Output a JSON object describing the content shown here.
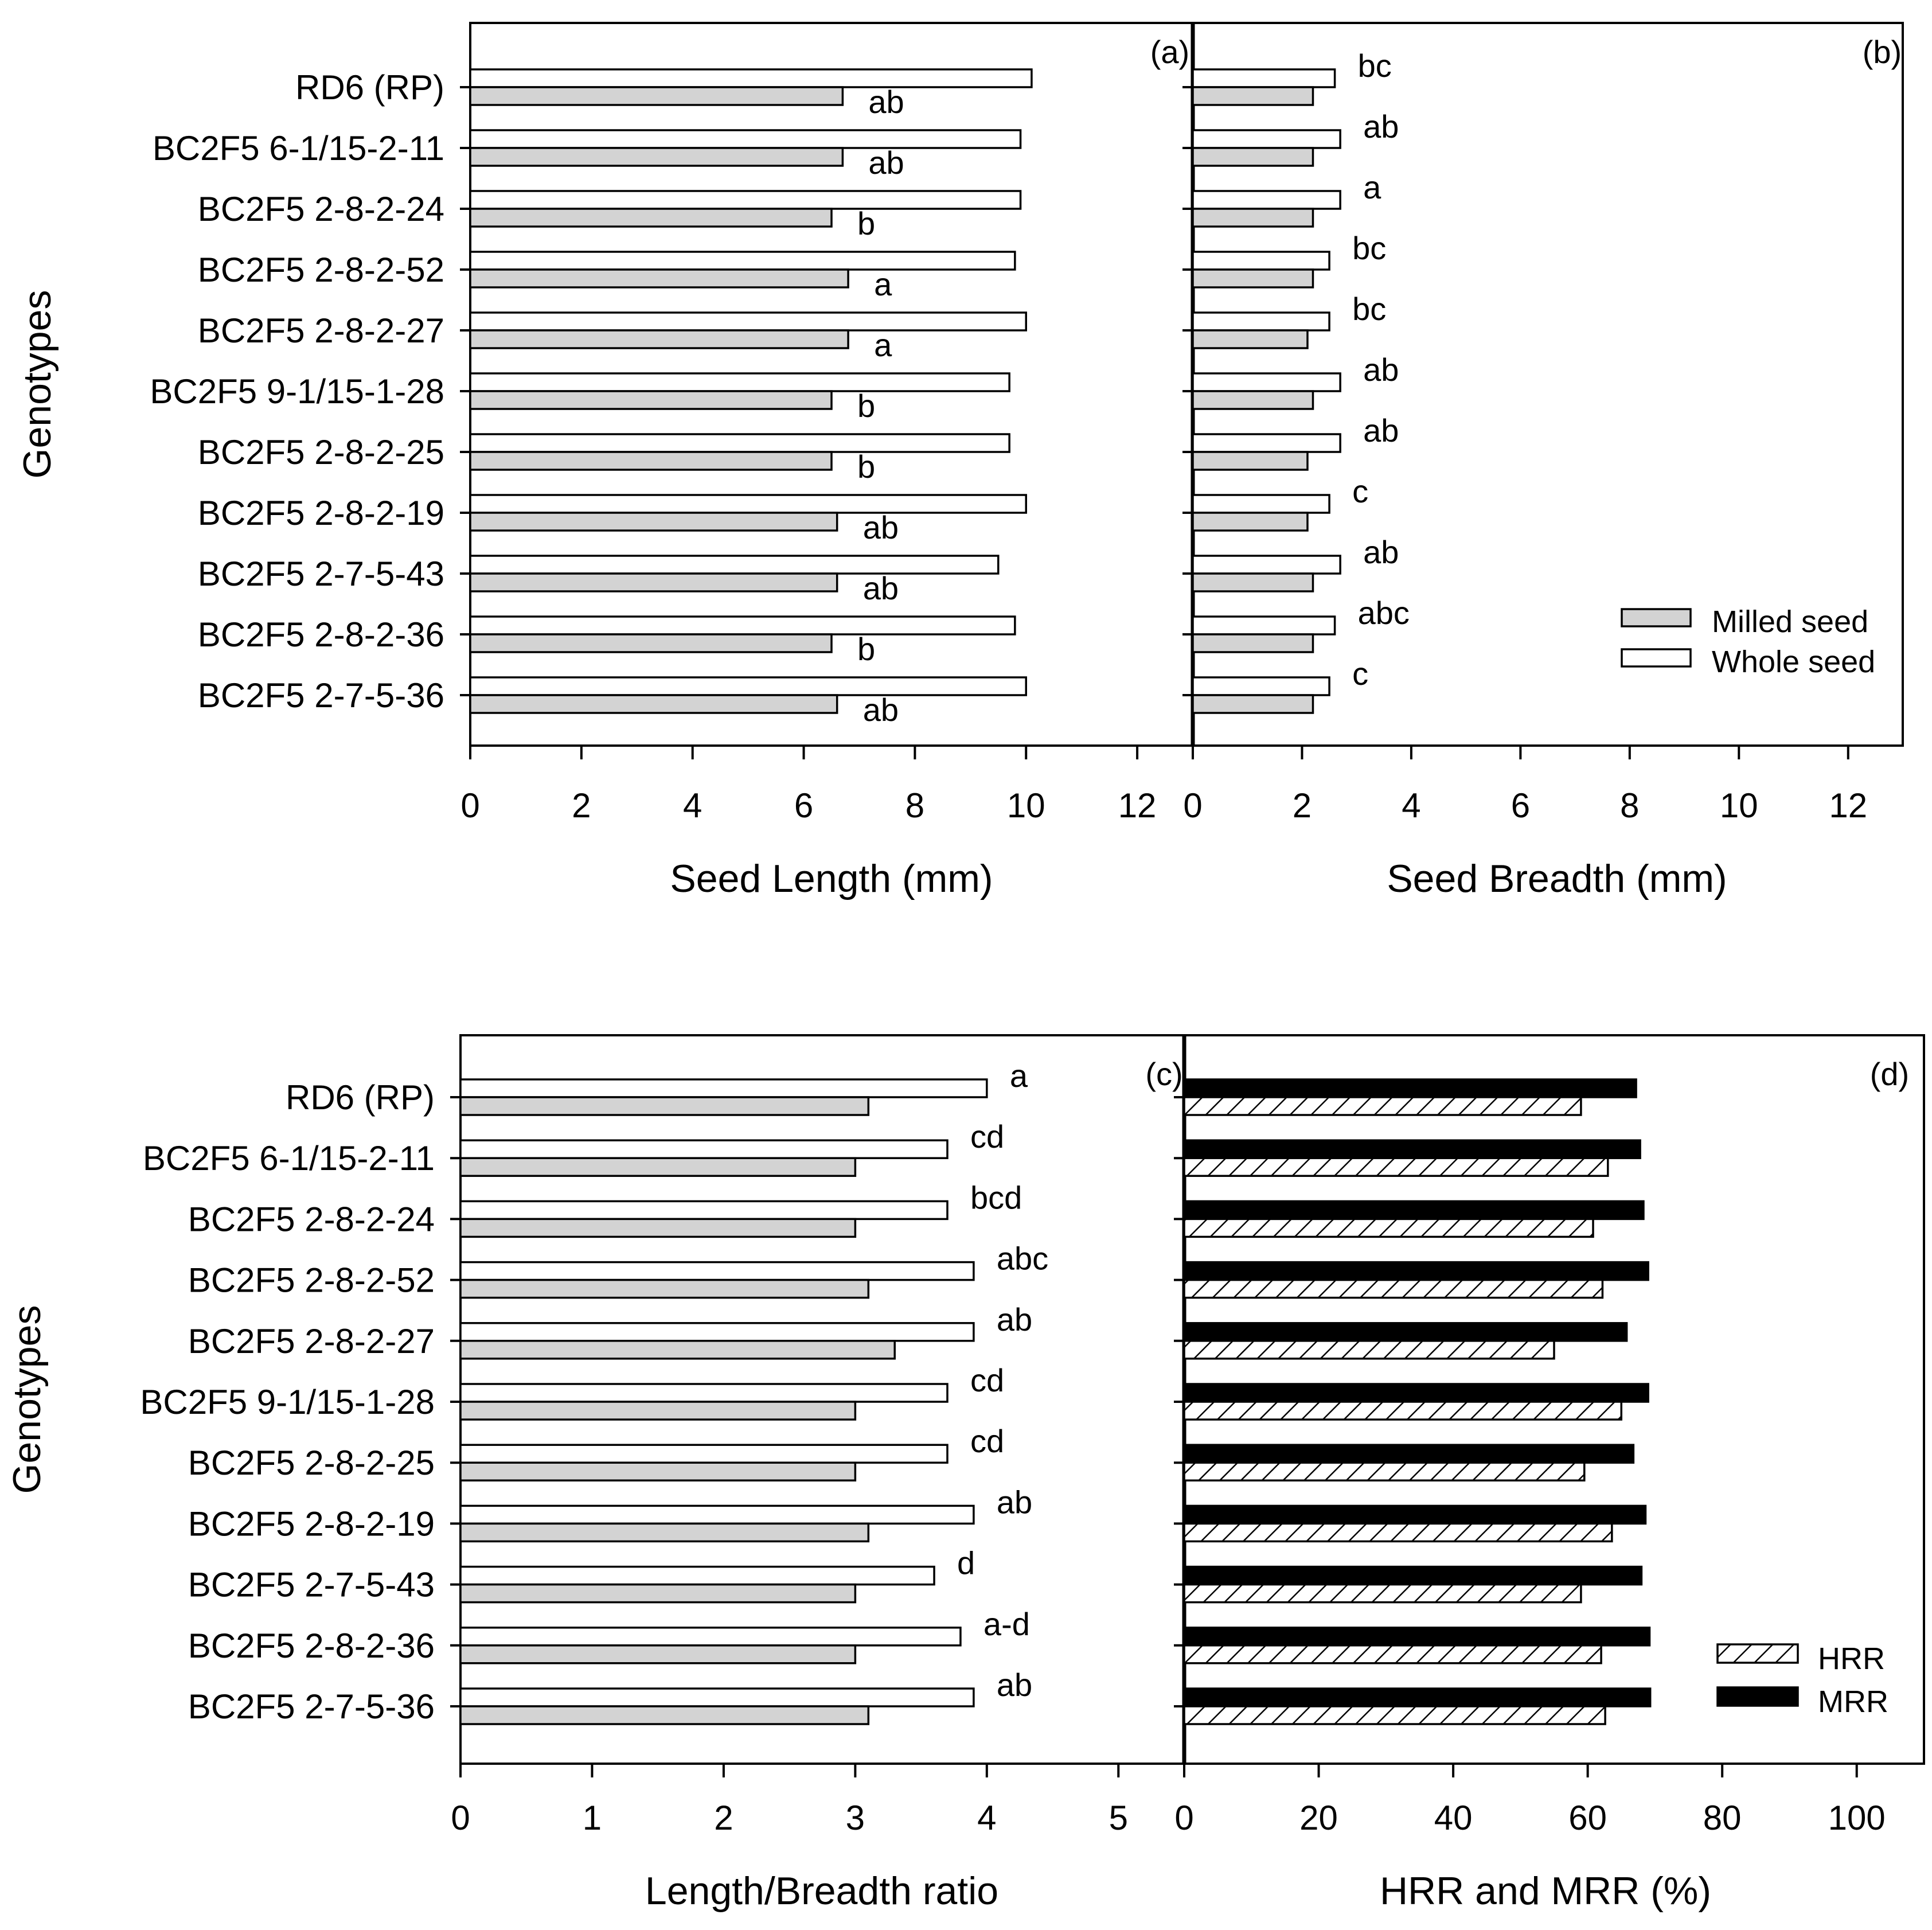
{
  "chart_data": [
    {
      "panel": "(a)",
      "type": "bar",
      "orientation": "horizontal",
      "ylabel": "Genotypes",
      "xlabel": "Seed Length (mm)",
      "xlim": [
        0,
        13
      ],
      "xticks": [
        "0",
        "2",
        "4",
        "6",
        "8",
        "10",
        "12"
      ],
      "categories": [
        "RD6 (RP)",
        "BC2F5 6-1/15-2-11",
        "BC2F5 2-8-2-24",
        "BC2F5 2-8-2-52",
        "BC2F5 2-8-2-27",
        "BC2F5 9-1/15-1-28",
        "BC2F5 2-8-2-25",
        "BC2F5 2-8-2-19",
        "BC2F5 2-7-5-43",
        "BC2F5 2-8-2-36",
        "BC2F5 2-7-5-36"
      ],
      "series": [
        {
          "name": "Whole seed",
          "color": "#ffffff",
          "values": [
            10.1,
            9.9,
            9.9,
            9.8,
            10.0,
            9.7,
            9.7,
            10.0,
            9.5,
            9.8,
            10.0
          ]
        },
        {
          "name": "Milled seed",
          "color": "#d3d3d3",
          "values": [
            6.7,
            6.7,
            6.5,
            6.8,
            6.8,
            6.5,
            6.5,
            6.6,
            6.6,
            6.5,
            6.6
          ]
        }
      ],
      "significance": [
        "ab",
        "ab",
        "b",
        "a",
        "a",
        "b",
        "b",
        "ab",
        "ab",
        "b",
        "ab"
      ],
      "grid": false
    },
    {
      "panel": "(b)",
      "type": "bar",
      "orientation": "horizontal",
      "xlabel": "Seed Breadth (mm)",
      "xlim": [
        0,
        13
      ],
      "xticks": [
        "0",
        "2",
        "4",
        "6",
        "8",
        "10",
        "12"
      ],
      "categories": [
        "RD6 (RP)",
        "BC2F5 6-1/15-2-11",
        "BC2F5 2-8-2-24",
        "BC2F5 2-8-2-52",
        "BC2F5 2-8-2-27",
        "BC2F5 9-1/15-1-28",
        "BC2F5 2-8-2-25",
        "BC2F5 2-8-2-19",
        "BC2F5 2-7-5-43",
        "BC2F5 2-8-2-36",
        "BC2F5 2-7-5-36"
      ],
      "series": [
        {
          "name": "Whole seed",
          "color": "#ffffff",
          "values": [
            2.6,
            2.7,
            2.7,
            2.5,
            2.5,
            2.7,
            2.7,
            2.5,
            2.7,
            2.6,
            2.5
          ]
        },
        {
          "name": "Milled seed",
          "color": "#d3d3d3",
          "values": [
            2.2,
            2.2,
            2.2,
            2.2,
            2.1,
            2.2,
            2.1,
            2.1,
            2.2,
            2.2,
            2.2
          ]
        }
      ],
      "significance": [
        "bc",
        "ab",
        "a",
        "bc",
        "bc",
        "ab",
        "ab",
        "c",
        "ab",
        "abc",
        "c"
      ],
      "legend": {
        "position": "bottom-right",
        "entries": [
          "Milled seed",
          "Whole seed"
        ]
      },
      "grid": false
    },
    {
      "panel": "(c)",
      "type": "bar",
      "orientation": "horizontal",
      "ylabel": "Genotypes",
      "xlabel": "Length/Breadth ratio",
      "xlim": [
        0,
        5.5
      ],
      "xticks": [
        "0",
        "1",
        "2",
        "3",
        "4",
        "5"
      ],
      "categories": [
        "RD6 (RP)",
        "BC2F5 6-1/15-2-11",
        "BC2F5 2-8-2-24",
        "BC2F5 2-8-2-52",
        "BC2F5 2-8-2-27",
        "BC2F5 9-1/15-1-28",
        "BC2F5 2-8-2-25",
        "BC2F5 2-8-2-19",
        "BC2F5 2-7-5-43",
        "BC2F5 2-8-2-36",
        "BC2F5 2-7-5-36"
      ],
      "series": [
        {
          "name": "",
          "color": "#ffffff",
          "values": [
            4.0,
            3.7,
            3.7,
            3.9,
            3.9,
            3.7,
            3.7,
            3.9,
            3.6,
            3.8,
            3.9
          ]
        },
        {
          "name": "",
          "color": "#d3d3d3",
          "values": [
            3.1,
            3.0,
            3.0,
            3.1,
            3.3,
            3.0,
            3.0,
            3.1,
            3.0,
            3.0,
            3.1
          ]
        }
      ],
      "significance": [
        "a",
        "cd",
        "bcd",
        "abc",
        "ab",
        "cd",
        "cd",
        "ab",
        "d",
        "a-d",
        "ab"
      ],
      "grid": false
    },
    {
      "panel": "(d)",
      "type": "bar",
      "orientation": "horizontal",
      "xlabel": "HRR and MRR (%)",
      "xlim": [
        0,
        110
      ],
      "xticks": [
        "0",
        "20",
        "40",
        "60",
        "80",
        "100"
      ],
      "categories": [
        "RD6 (RP)",
        "BC2F5 6-1/15-2-11",
        "BC2F5 2-8-2-24",
        "BC2F5 2-8-2-52",
        "BC2F5 2-8-2-27",
        "BC2F5 9-1/15-1-28",
        "BC2F5 2-8-2-25",
        "BC2F5 2-8-2-19",
        "BC2F5 2-7-5-43",
        "BC2F5 2-8-2-36",
        "BC2F5 2-7-5-36"
      ],
      "series": [
        {
          "name": "MRR",
          "color": "#000000",
          "values": [
            67.2,
            67.8,
            68.3,
            69.0,
            65.8,
            69.0,
            66.8,
            68.6,
            68.0,
            69.2,
            69.3
          ]
        },
        {
          "name": "HRR",
          "color": "hatched",
          "values": [
            59.0,
            63.0,
            60.8,
            62.2,
            55.0,
            65.0,
            59.5,
            63.6,
            59.0,
            62.0,
            62.6
          ]
        }
      ],
      "legend": {
        "position": "bottom-right",
        "entries": [
          "HRR",
          "MRR"
        ]
      },
      "grid": false
    }
  ]
}
